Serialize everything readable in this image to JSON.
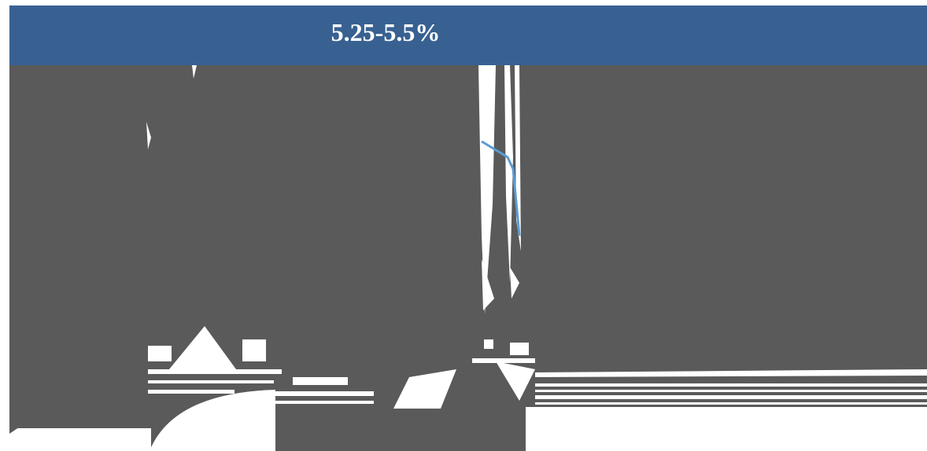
{
  "header": {
    "title": "5.25-5.5%"
  }
}
